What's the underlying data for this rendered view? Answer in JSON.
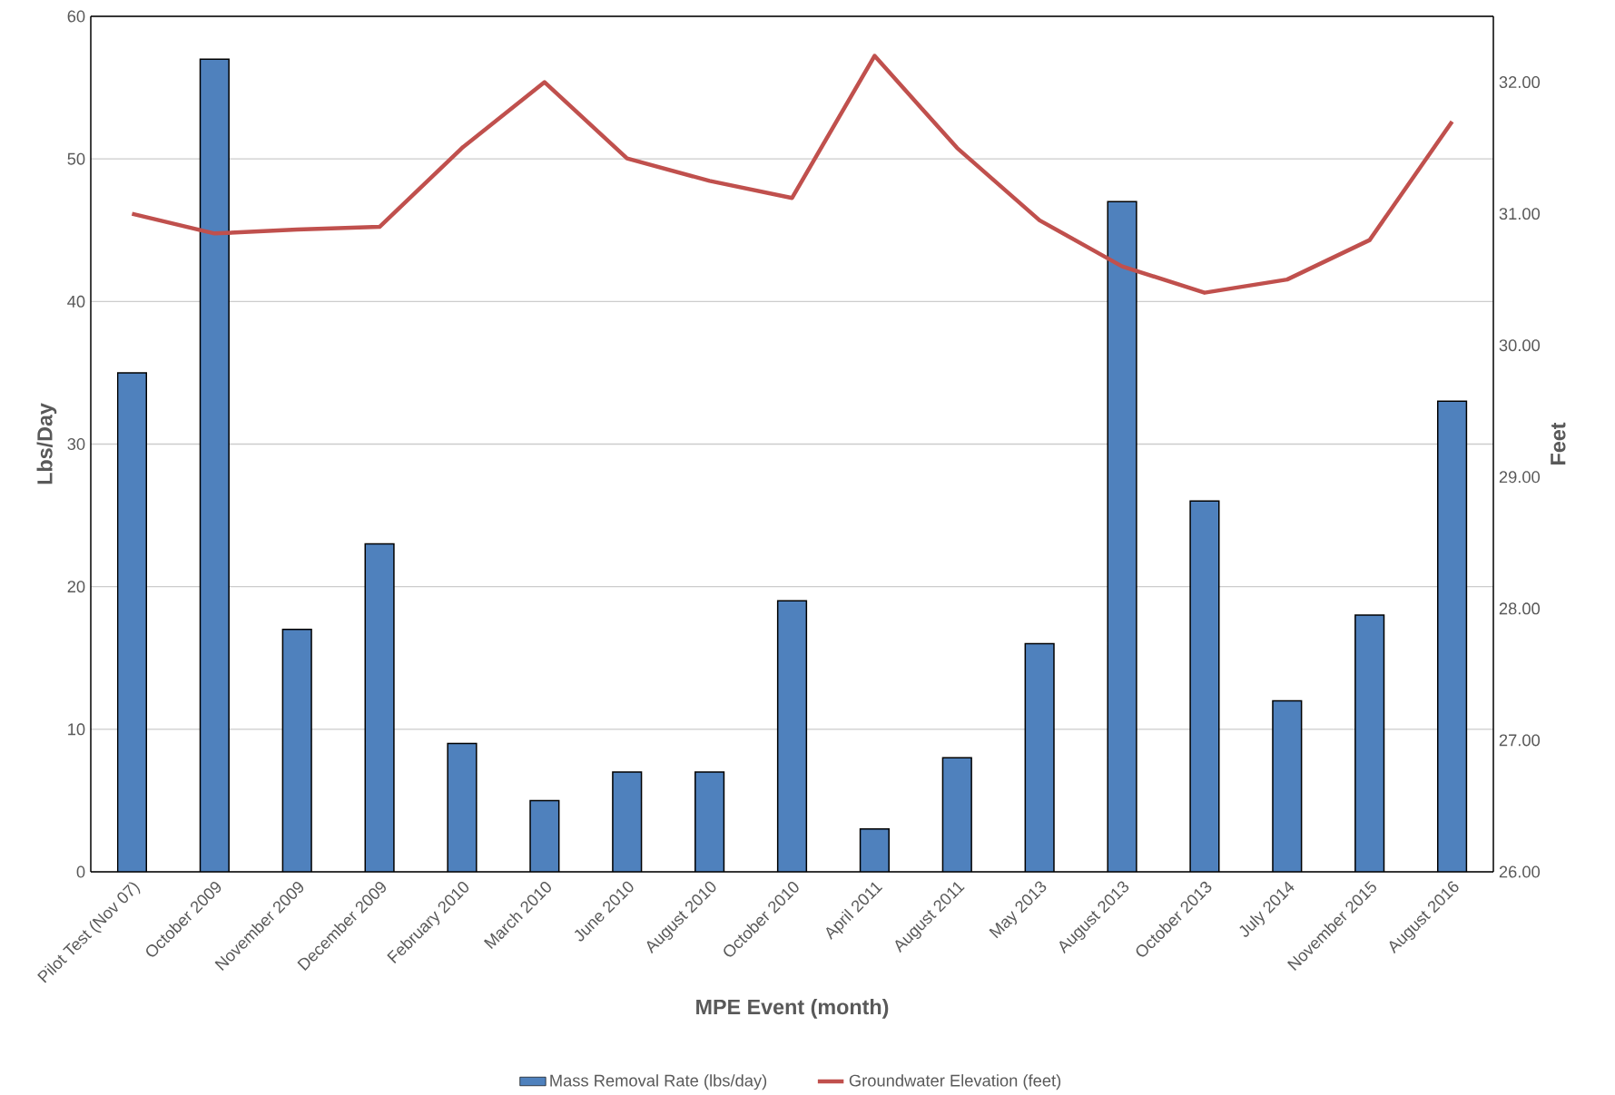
{
  "chart_data": {
    "type": "bar",
    "xlabel": "MPE Event (month)",
    "ylabel": "Lbs/Day",
    "y2label": "Feet",
    "categories": [
      "Pilot Test (Nov 07)",
      "October 2009",
      "November 2009",
      "December 2009",
      "February 2010",
      "March 2010",
      "June 2010",
      "August 2010",
      "October 2010",
      "April 2011",
      "August 2011",
      "May 2013",
      "August 2013",
      "October 2013",
      "July 2014",
      "November 2015",
      "August 2016"
    ],
    "series": [
      {
        "name": "Mass Removal Rate (lbs/day)",
        "color": "#4f81bd",
        "values": [
          35,
          57,
          17,
          23,
          9,
          5,
          7,
          7,
          19,
          3,
          8,
          16,
          47,
          26,
          12,
          18,
          33
        ]
      },
      {
        "name": "Groundwater Elevation (feet)",
        "type": "line",
        "axis": "y2",
        "color": "#c0504d",
        "values": [
          31.0,
          30.85,
          30.88,
          30.9,
          31.5,
          32.0,
          31.42,
          31.25,
          31.12,
          32.2,
          31.5,
          30.95,
          30.6,
          30.4,
          30.5,
          30.8,
          31.7
        ]
      }
    ],
    "ylim": [
      0,
      60
    ],
    "yticks": [
      0,
      10,
      20,
      30,
      40,
      50,
      60
    ],
    "y2lim": [
      26,
      32.5
    ],
    "y2ticks": [
      {
        "value": 26,
        "label": "26.00"
      },
      {
        "value": 27,
        "label": "27.00"
      },
      {
        "value": 28,
        "label": "28.00"
      },
      {
        "value": 29,
        "label": "29.00"
      },
      {
        "value": 30,
        "label": "30.00"
      },
      {
        "value": 31,
        "label": "31.00"
      },
      {
        "value": 32,
        "label": "32.00"
      }
    ],
    "grid": "y",
    "legend": "bottom"
  }
}
